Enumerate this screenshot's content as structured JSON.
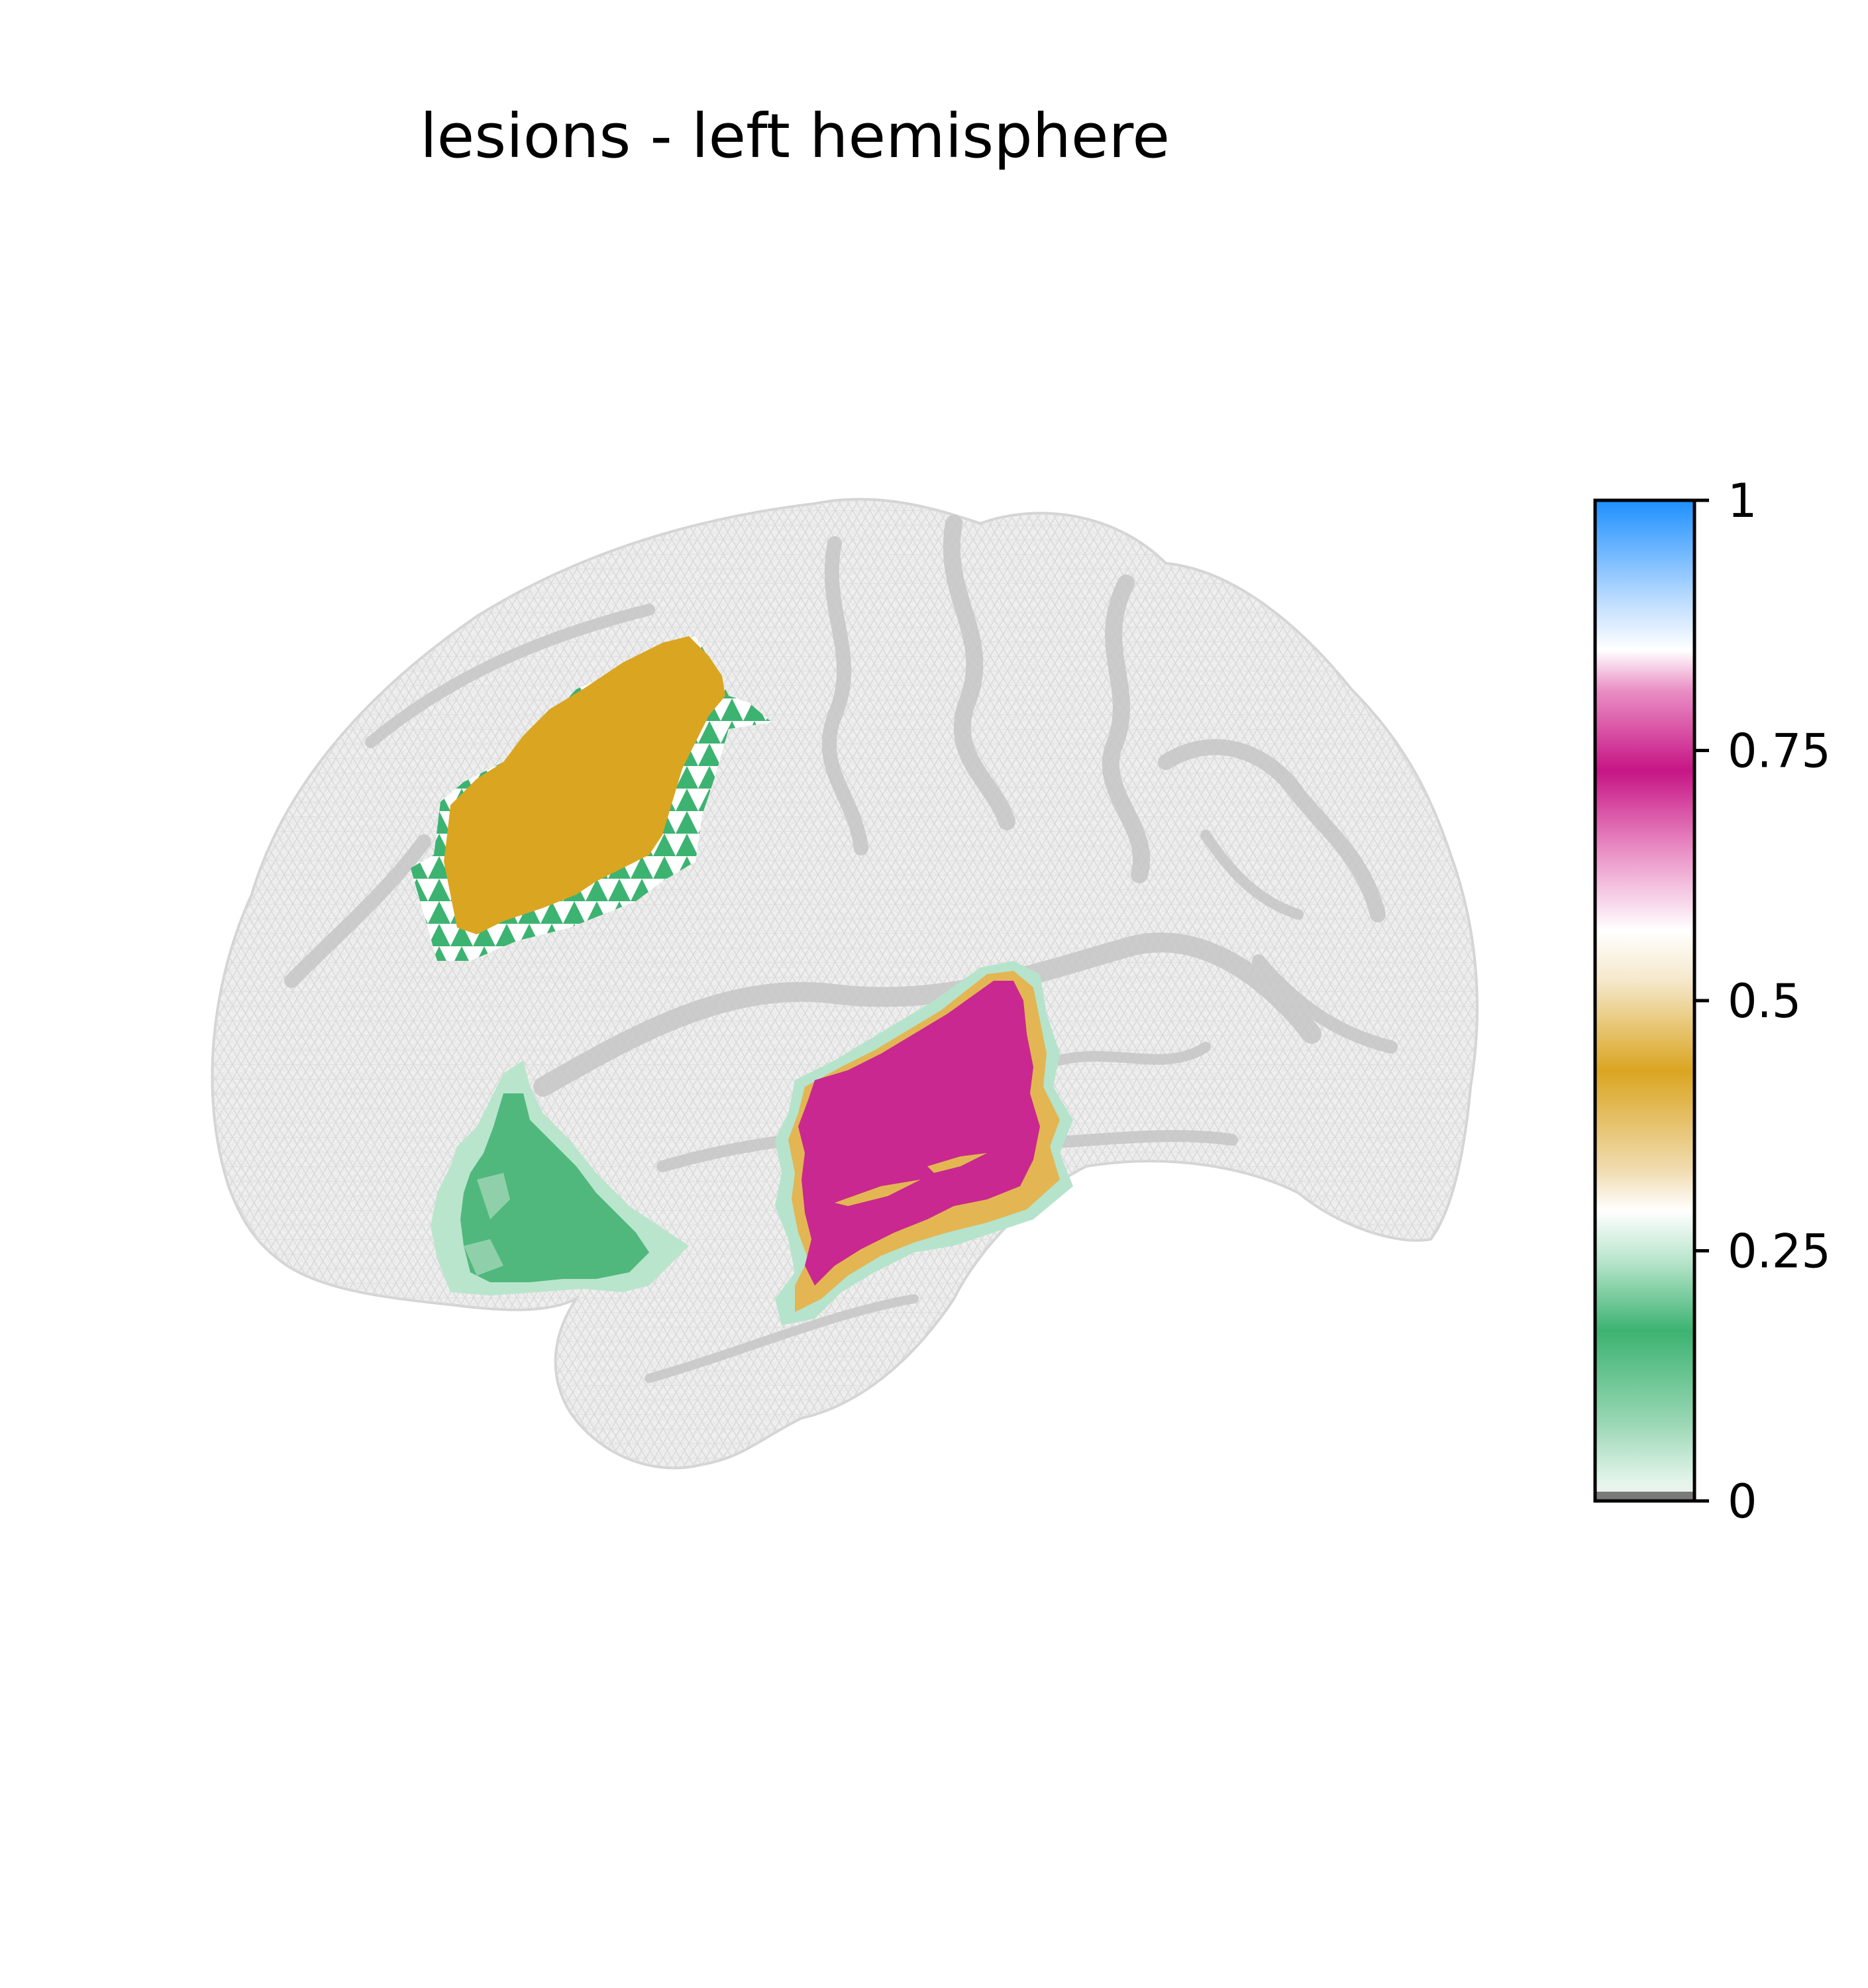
{
  "title": "lesions - left hemisphere",
  "colorbar": {
    "ticks": [
      {
        "value": 1,
        "label": "1"
      },
      {
        "value": 0.75,
        "label": "0.75"
      },
      {
        "value": 0.5,
        "label": "0.5"
      },
      {
        "value": 0.25,
        "label": "0.25"
      },
      {
        "value": 0,
        "label": "0"
      }
    ],
    "range": [
      0,
      1
    ],
    "gradient": [
      {
        "value": 0.0,
        "color": "#f2f2f2"
      },
      {
        "value": 0.02,
        "color": "#e3f4ea"
      },
      {
        "value": 0.08,
        "color": "#97d6b2"
      },
      {
        "value": 0.17,
        "color": "#3cb371"
      },
      {
        "value": 0.24,
        "color": "#b9e5cc"
      },
      {
        "value": 0.29,
        "color": "#ffffff"
      },
      {
        "value": 0.33,
        "color": "#f1dcb1"
      },
      {
        "value": 0.43,
        "color": "#daa520"
      },
      {
        "value": 0.52,
        "color": "#f5e8cb"
      },
      {
        "value": 0.57,
        "color": "#ffffff"
      },
      {
        "value": 0.65,
        "color": "#ea8fc5"
      },
      {
        "value": 0.73,
        "color": "#c71585"
      },
      {
        "value": 0.81,
        "color": "#ea8fc5"
      },
      {
        "value": 0.85,
        "color": "#ffffff"
      },
      {
        "value": 0.9,
        "color": "#bcdcff"
      },
      {
        "value": 1.0,
        "color": "#1e90ff"
      }
    ]
  },
  "regions": [
    {
      "name": "frontal-lesion",
      "value": 0.43,
      "color": "#daa520",
      "edge_color": "#3cb371"
    },
    {
      "name": "temporal-lesion",
      "value": 0.73,
      "color": "#c71585",
      "edge_color": "#daa520"
    },
    {
      "name": "temporal-pole-lesion",
      "value": 0.17,
      "color": "#3cb371",
      "edge_color": "#b9e5cc"
    }
  ],
  "colors": {
    "brain_fill": "#ececec",
    "brain_mesh": "#d0d0d0",
    "sulci": "#c8c8c8"
  }
}
